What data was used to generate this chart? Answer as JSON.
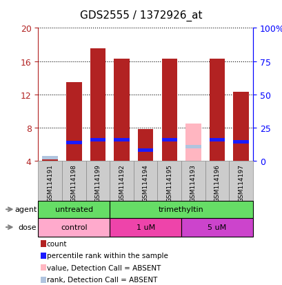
{
  "title": "GDS2555 / 1372926_at",
  "samples": [
    "GSM114191",
    "GSM114198",
    "GSM114199",
    "GSM114192",
    "GSM114194",
    "GSM114195",
    "GSM114193",
    "GSM114196",
    "GSM114197"
  ],
  "count_values": [
    4.35,
    13.5,
    17.5,
    16.3,
    7.8,
    16.3,
    0.0,
    16.3,
    12.3
  ],
  "count_absent": [
    0,
    0,
    0,
    0,
    0,
    0,
    8.5,
    0,
    0
  ],
  "rank_values": [
    0,
    6.2,
    6.5,
    6.5,
    5.3,
    6.5,
    0,
    6.5,
    6.3
  ],
  "rank_absent": [
    4.35,
    0,
    0,
    0,
    0,
    0,
    5.7,
    0,
    0
  ],
  "ylim": [
    4,
    20
  ],
  "yticks_left": [
    4,
    8,
    12,
    16,
    20
  ],
  "yticks_right_vals": [
    0,
    25,
    50,
    75,
    100
  ],
  "yticks_right_labels": [
    "0",
    "25",
    "50",
    "75",
    "100%"
  ],
  "color_count": "#b22222",
  "color_rank": "#1a1aff",
  "color_count_absent": "#ffb6c1",
  "color_rank_absent": "#b0c4de",
  "bar_width": 0.65,
  "agent_groups": [
    {
      "label": "untreated",
      "start": 0,
      "end": 3,
      "color": "#66dd66"
    },
    {
      "label": "trimethyltin",
      "start": 3,
      "end": 9,
      "color": "#66dd66"
    }
  ],
  "dose_groups": [
    {
      "label": "control",
      "start": 0,
      "end": 3,
      "color": "#ffaacc"
    },
    {
      "label": "1 uM",
      "start": 3,
      "end": 6,
      "color": "#ee44aa"
    },
    {
      "label": "5 uM",
      "start": 6,
      "end": 9,
      "color": "#cc44cc"
    }
  ],
  "legend_items": [
    {
      "label": "count",
      "color": "#b22222"
    },
    {
      "label": "percentile rank within the sample",
      "color": "#1a1aff"
    },
    {
      "label": "value, Detection Call = ABSENT",
      "color": "#ffb6c1"
    },
    {
      "label": "rank, Detection Call = ABSENT",
      "color": "#b0c4de"
    }
  ],
  "fig_width": 4.1,
  "fig_height": 4.14,
  "dpi": 100
}
